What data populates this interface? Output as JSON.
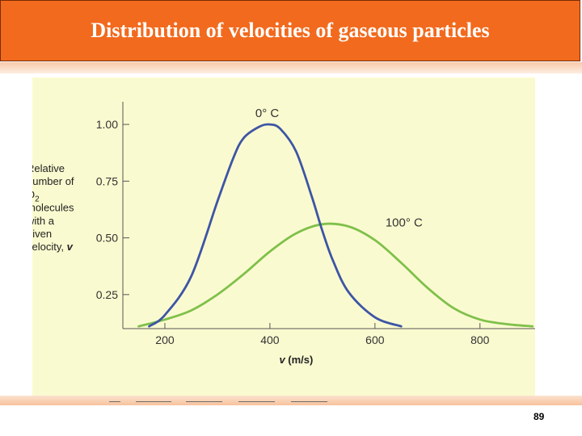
{
  "slide": {
    "title": "Distribution of velocities of gaseous particles",
    "page_number": "89"
  },
  "chart_data": {
    "type": "line",
    "xlabel": "v (m/s)",
    "xlabel_var": "v",
    "xlabel_unit": "(m/s)",
    "ylabel_lines": [
      "Relative",
      "number of",
      "O",
      "molecules",
      "with a",
      "given",
      "velocity,"
    ],
    "ylabel_subscript": "2",
    "ylabel_var": "v",
    "xlim": [
      120,
      905
    ],
    "ylim": [
      0.1,
      1.1
    ],
    "x_ticks": [
      200,
      400,
      600,
      800
    ],
    "y_ticks": [
      0.25,
      0.5,
      0.75,
      1.0
    ],
    "y_tick_labels": [
      "0.25",
      "0.50",
      "0.75",
      "1.00"
    ],
    "grid": false,
    "series": [
      {
        "name": "0° C",
        "color": "#3d55a5",
        "x": [
          170,
          200,
          250,
          300,
          330,
          350,
          380,
          400,
          420,
          450,
          480,
          500,
          520,
          550,
          600,
          650
        ],
        "y": [
          0.11,
          0.16,
          0.33,
          0.66,
          0.85,
          0.94,
          0.99,
          1.0,
          0.98,
          0.88,
          0.68,
          0.53,
          0.4,
          0.26,
          0.15,
          0.11
        ]
      },
      {
        "name": "100° C",
        "color": "#7fc04a",
        "x": [
          150,
          200,
          250,
          300,
          350,
          400,
          450,
          500,
          550,
          600,
          650,
          700,
          750,
          800,
          850,
          900
        ],
        "y": [
          0.11,
          0.14,
          0.18,
          0.25,
          0.34,
          0.44,
          0.52,
          0.56,
          0.55,
          0.49,
          0.39,
          0.28,
          0.19,
          0.14,
          0.12,
          0.11
        ]
      }
    ]
  }
}
